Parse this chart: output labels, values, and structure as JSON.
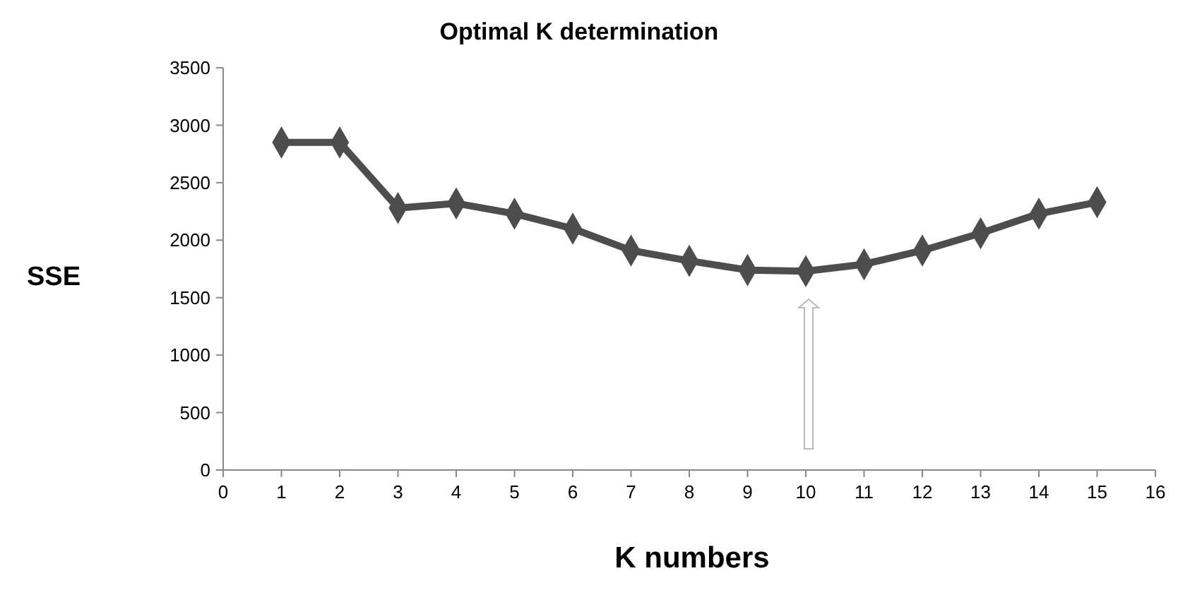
{
  "chart_data": {
    "type": "line",
    "title": "Optimal K determination",
    "xlabel": "K numbers",
    "ylabel": "SSE",
    "x": [
      1,
      2,
      3,
      4,
      5,
      6,
      7,
      8,
      9,
      10,
      11,
      12,
      13,
      14,
      15
    ],
    "series": [
      {
        "color": "#4d4d4d",
        "values": [
          2850,
          2850,
          2280,
          2320,
          2230,
          2100,
          1910,
          1820,
          1740,
          1730,
          1790,
          1910,
          2060,
          2230,
          2330
        ]
      }
    ],
    "xlim": [
      0,
      16
    ],
    "xticks": [
      0,
      1,
      2,
      3,
      4,
      5,
      6,
      7,
      8,
      9,
      10,
      11,
      12,
      13,
      14,
      15,
      16
    ],
    "ylim": [
      0,
      3500
    ],
    "yticks": [
      0,
      500,
      1000,
      1500,
      2000,
      2500,
      3000,
      3500
    ],
    "marker": "diamond",
    "line_style": "solid"
  }
}
